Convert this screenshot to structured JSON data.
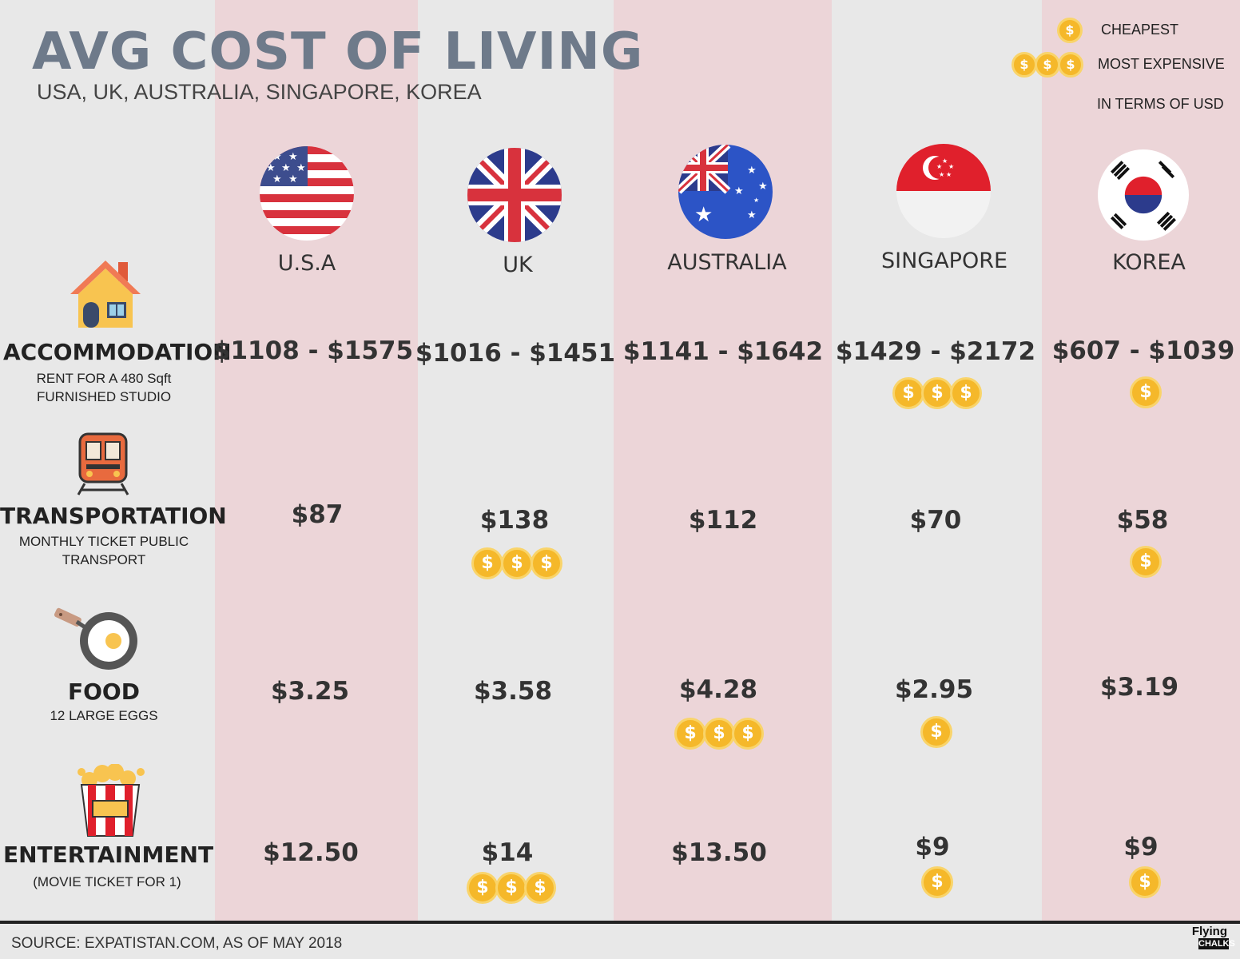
{
  "header": {
    "title": "AVG COST OF LIVING",
    "subtitle": "USA, UK, AUSTRALIA, SINGAPORE, KOREA"
  },
  "legend": {
    "cheapest": "CHEAPEST",
    "most_expensive": "MOST EXPENSIVE",
    "note": "IN TERMS OF USD",
    "coin_symbol": "$"
  },
  "countries": [
    {
      "name": "U.S.A",
      "flag": "usa-flag"
    },
    {
      "name": "UK",
      "flag": "uk-flag"
    },
    {
      "name": "AUSTRALIA",
      "flag": "australia-flag"
    },
    {
      "name": "SINGAPORE",
      "flag": "singapore-flag"
    },
    {
      "name": "KOREA",
      "flag": "korea-flag"
    }
  ],
  "categories": [
    {
      "title": "ACCOMMODATION",
      "desc_line1": "RENT FOR A 480 Sqft",
      "desc_line2": "FURNISHED STUDIO",
      "icon": "house-icon",
      "values": [
        "$1108 - $1575",
        "$1016 - $1451",
        "$1141 - $1642",
        "$1429 - $2172",
        "$607 - $1039"
      ]
    },
    {
      "title": "TRANSPORTATION",
      "desc_line1": "MONTHLY TICKET PUBLIC",
      "desc_line2": "TRANSPORT",
      "icon": "train-icon",
      "values": [
        "$87",
        "$138",
        "$112",
        "$70",
        "$58"
      ]
    },
    {
      "title": "FOOD",
      "desc_line1": "12 LARGE EGGS",
      "desc_line2": "",
      "icon": "frying-pan-icon",
      "values": [
        "$3.25",
        "$3.58",
        "$4.28",
        "$2.95",
        "$3.19"
      ]
    },
    {
      "title": "ENTERTAINMENT",
      "desc_line1": "(MOVIE TICKET FOR 1)",
      "desc_line2": "",
      "icon": "popcorn-icon",
      "values": [
        "$12.50",
        "$14",
        "$13.50",
        "$9",
        "$9"
      ]
    }
  ],
  "footer": {
    "source": "SOURCE: EXPATISTAN.COM, AS OF MAY 2018",
    "logo_line1": "Flying",
    "logo_line2": "CHALKS"
  },
  "colors": {
    "background": "#e8e8e8",
    "column_stripe": "#ecd5d8",
    "title": "#6e7a8a",
    "coin": "#f5b82a"
  }
}
